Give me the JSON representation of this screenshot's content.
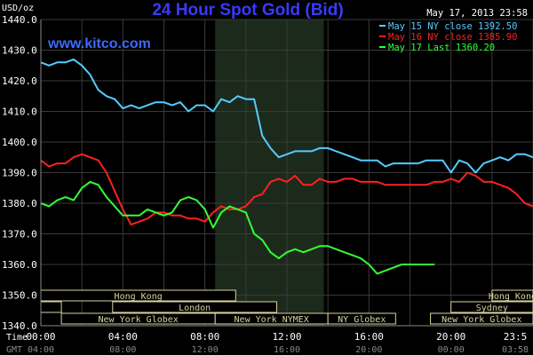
{
  "chart_data": {
    "type": "line",
    "title": "24 Hour Spot Gold (Bid)",
    "watermark": "www.kitco.com",
    "date_label": "May 17, 2013 23:58",
    "ylabel": "USD/oz",
    "ylim": [
      1340,
      1440
    ],
    "y_ticks": [
      "1440.0",
      "1430.0",
      "1420.0",
      "1410.0",
      "1400.0",
      "1390.0",
      "1380.0",
      "1370.0",
      "1360.0",
      "1350.0",
      "1340.0"
    ],
    "xlim": [
      0,
      24
    ],
    "x_ticks": [
      "00:00",
      "04:00",
      "08:00",
      "12:00",
      "16:00",
      "20:00",
      "23:5"
    ],
    "gmt_ticks": [
      "04:00",
      "08:00",
      "12:00",
      "16:00",
      "20:00",
      "00:00",
      "03:58"
    ],
    "time_label": "Time",
    "gmt_label": "GMT",
    "grid": true,
    "legend_position": "top-right",
    "colors": {
      "background": "#000000",
      "grid": "#3a3a3a",
      "text": "#ffffff",
      "title": "#3a3aff",
      "watermark": "#3a6aff",
      "shade": "#1c2a1c",
      "session": "#d8d4a0"
    },
    "series": [
      {
        "name": "May 15 NY close 1392.50",
        "color": "#55ccff",
        "x": [
          0,
          0.4,
          0.8,
          1.2,
          1.6,
          2,
          2.4,
          2.8,
          3.2,
          3.6,
          4,
          4.4,
          4.8,
          5.2,
          5.6,
          6,
          6.4,
          6.8,
          7.2,
          7.6,
          8,
          8.4,
          8.8,
          9.2,
          9.6,
          10,
          10.4,
          10.8,
          11.2,
          11.6,
          12,
          12.4,
          12.8,
          13.2,
          13.6,
          14,
          14.4,
          14.8,
          15.2,
          15.6,
          16,
          16.4,
          16.8,
          17.2,
          17.6,
          18,
          18.4,
          18.8,
          19.2,
          19.6,
          20,
          20.4,
          20.8,
          21.2,
          21.6,
          22,
          22.4,
          22.8,
          23.2,
          23.6,
          24
        ],
        "y": [
          1426,
          1425,
          1426,
          1426,
          1427,
          1425,
          1422,
          1417,
          1415,
          1414,
          1411,
          1412,
          1411,
          1412,
          1413,
          1413,
          1412,
          1413,
          1410,
          1412,
          1412,
          1410,
          1414,
          1413,
          1415,
          1414,
          1414,
          1402,
          1398,
          1395,
          1396,
          1397,
          1397,
          1397,
          1398,
          1398,
          1397,
          1396,
          1395,
          1394,
          1394,
          1394,
          1392,
          1393,
          1393,
          1393,
          1393,
          1394,
          1394,
          1394,
          1390,
          1394,
          1393,
          1390,
          1393,
          1394,
          1395,
          1394,
          1396,
          1396,
          1395
        ]
      },
      {
        "name": "May 16 NY close 1385.90",
        "color": "#ff2020",
        "x": [
          0,
          0.4,
          0.8,
          1.2,
          1.6,
          2,
          2.4,
          2.8,
          3.2,
          3.6,
          4,
          4.4,
          4.8,
          5.2,
          5.6,
          6,
          6.4,
          6.8,
          7.2,
          7.6,
          8,
          8.4,
          8.8,
          9.2,
          9.6,
          10,
          10.4,
          10.8,
          11.2,
          11.6,
          12,
          12.4,
          12.8,
          13.2,
          13.6,
          14,
          14.4,
          14.8,
          15.2,
          15.6,
          16,
          16.4,
          16.8,
          17.2,
          17.6,
          18,
          18.4,
          18.8,
          19.2,
          19.6,
          20,
          20.4,
          20.8,
          21.2,
          21.6,
          22,
          22.4,
          22.8,
          23.2,
          23.6,
          24
        ],
        "y": [
          1394,
          1392,
          1393,
          1393,
          1395,
          1396,
          1395,
          1394,
          1390,
          1384,
          1378,
          1373,
          1374,
          1375,
          1377,
          1377,
          1376,
          1376,
          1375,
          1375,
          1374,
          1377,
          1379,
          1378,
          1378,
          1379,
          1382,
          1383,
          1387,
          1388,
          1387,
          1389,
          1386,
          1386,
          1388,
          1387,
          1387,
          1388,
          1388,
          1387,
          1387,
          1387,
          1386,
          1386,
          1386,
          1386,
          1386,
          1386,
          1387,
          1387,
          1388,
          1387,
          1390,
          1389,
          1387,
          1387,
          1386,
          1385,
          1383,
          1380,
          1379
        ]
      },
      {
        "name": "May 17 Last 1360.20",
        "color": "#33ff33",
        "x": [
          0,
          0.4,
          0.8,
          1.2,
          1.6,
          2,
          2.4,
          2.8,
          3.2,
          3.6,
          4,
          4.4,
          4.8,
          5.2,
          5.6,
          6,
          6.4,
          6.8,
          7.2,
          7.6,
          8,
          8.4,
          8.8,
          9.2,
          9.6,
          10,
          10.4,
          10.8,
          11.2,
          11.6,
          12,
          12.4,
          12.8,
          13.2,
          13.6,
          14,
          14.4,
          14.8,
          15.2,
          15.6,
          16,
          16.4,
          16.8,
          17.2,
          17.6,
          18,
          18.4,
          18.8,
          19.2
        ],
        "y": [
          1380,
          1379,
          1381,
          1382,
          1381,
          1385,
          1387,
          1386,
          1382,
          1379,
          1376,
          1376,
          1376,
          1378,
          1377,
          1376,
          1377,
          1381,
          1382,
          1381,
          1378,
          1372,
          1377,
          1379,
          1378,
          1377,
          1370,
          1368,
          1364,
          1362,
          1364,
          1365,
          1364,
          1365,
          1366,
          1366,
          1365,
          1364,
          1363,
          1362,
          1360,
          1357,
          1358,
          1359,
          1360,
          1360,
          1360,
          1360,
          1360
        ]
      }
    ],
    "session_rows": [
      [
        {
          "label": "Hong Kong",
          "from": 0,
          "to": 9.5
        },
        {
          "label": "Hong Kong",
          "from": 22,
          "to": 24
        }
      ],
      [
        {
          "label": "",
          "from": 0,
          "to": 1
        },
        {
          "label": "London",
          "from": 3.5,
          "to": 11.5
        },
        {
          "label": "Sydney",
          "from": 20,
          "to": 24
        }
      ],
      [
        {
          "label": "New York Globex",
          "from": 1,
          "to": 8.5
        },
        {
          "label": "New York NYMEX",
          "from": 8.5,
          "to": 14
        },
        {
          "label": "NY Globex",
          "from": 14,
          "to": 17.3
        },
        {
          "label": "New York Globex",
          "from": 19,
          "to": 24
        }
      ]
    ],
    "shaded_range": [
      8.5,
      13.8
    ]
  }
}
